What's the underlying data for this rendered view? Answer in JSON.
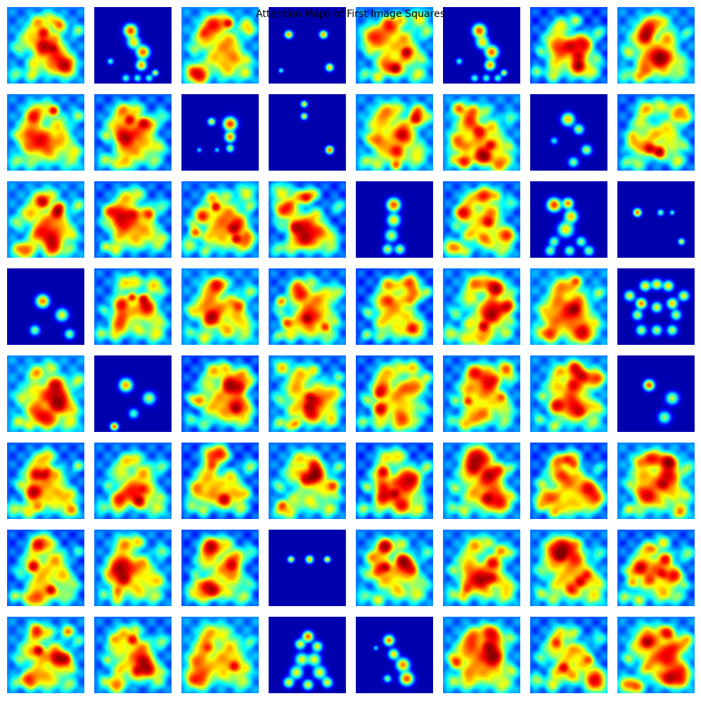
{
  "chart_data": {
    "type": "heatmap",
    "title": "Attention Maps of First Image Squares",
    "rows": 8,
    "cols": 8,
    "panel_count": 64,
    "axes_visible": false,
    "colormap": "jet",
    "value_range": [
      0,
      1
    ]
  }
}
